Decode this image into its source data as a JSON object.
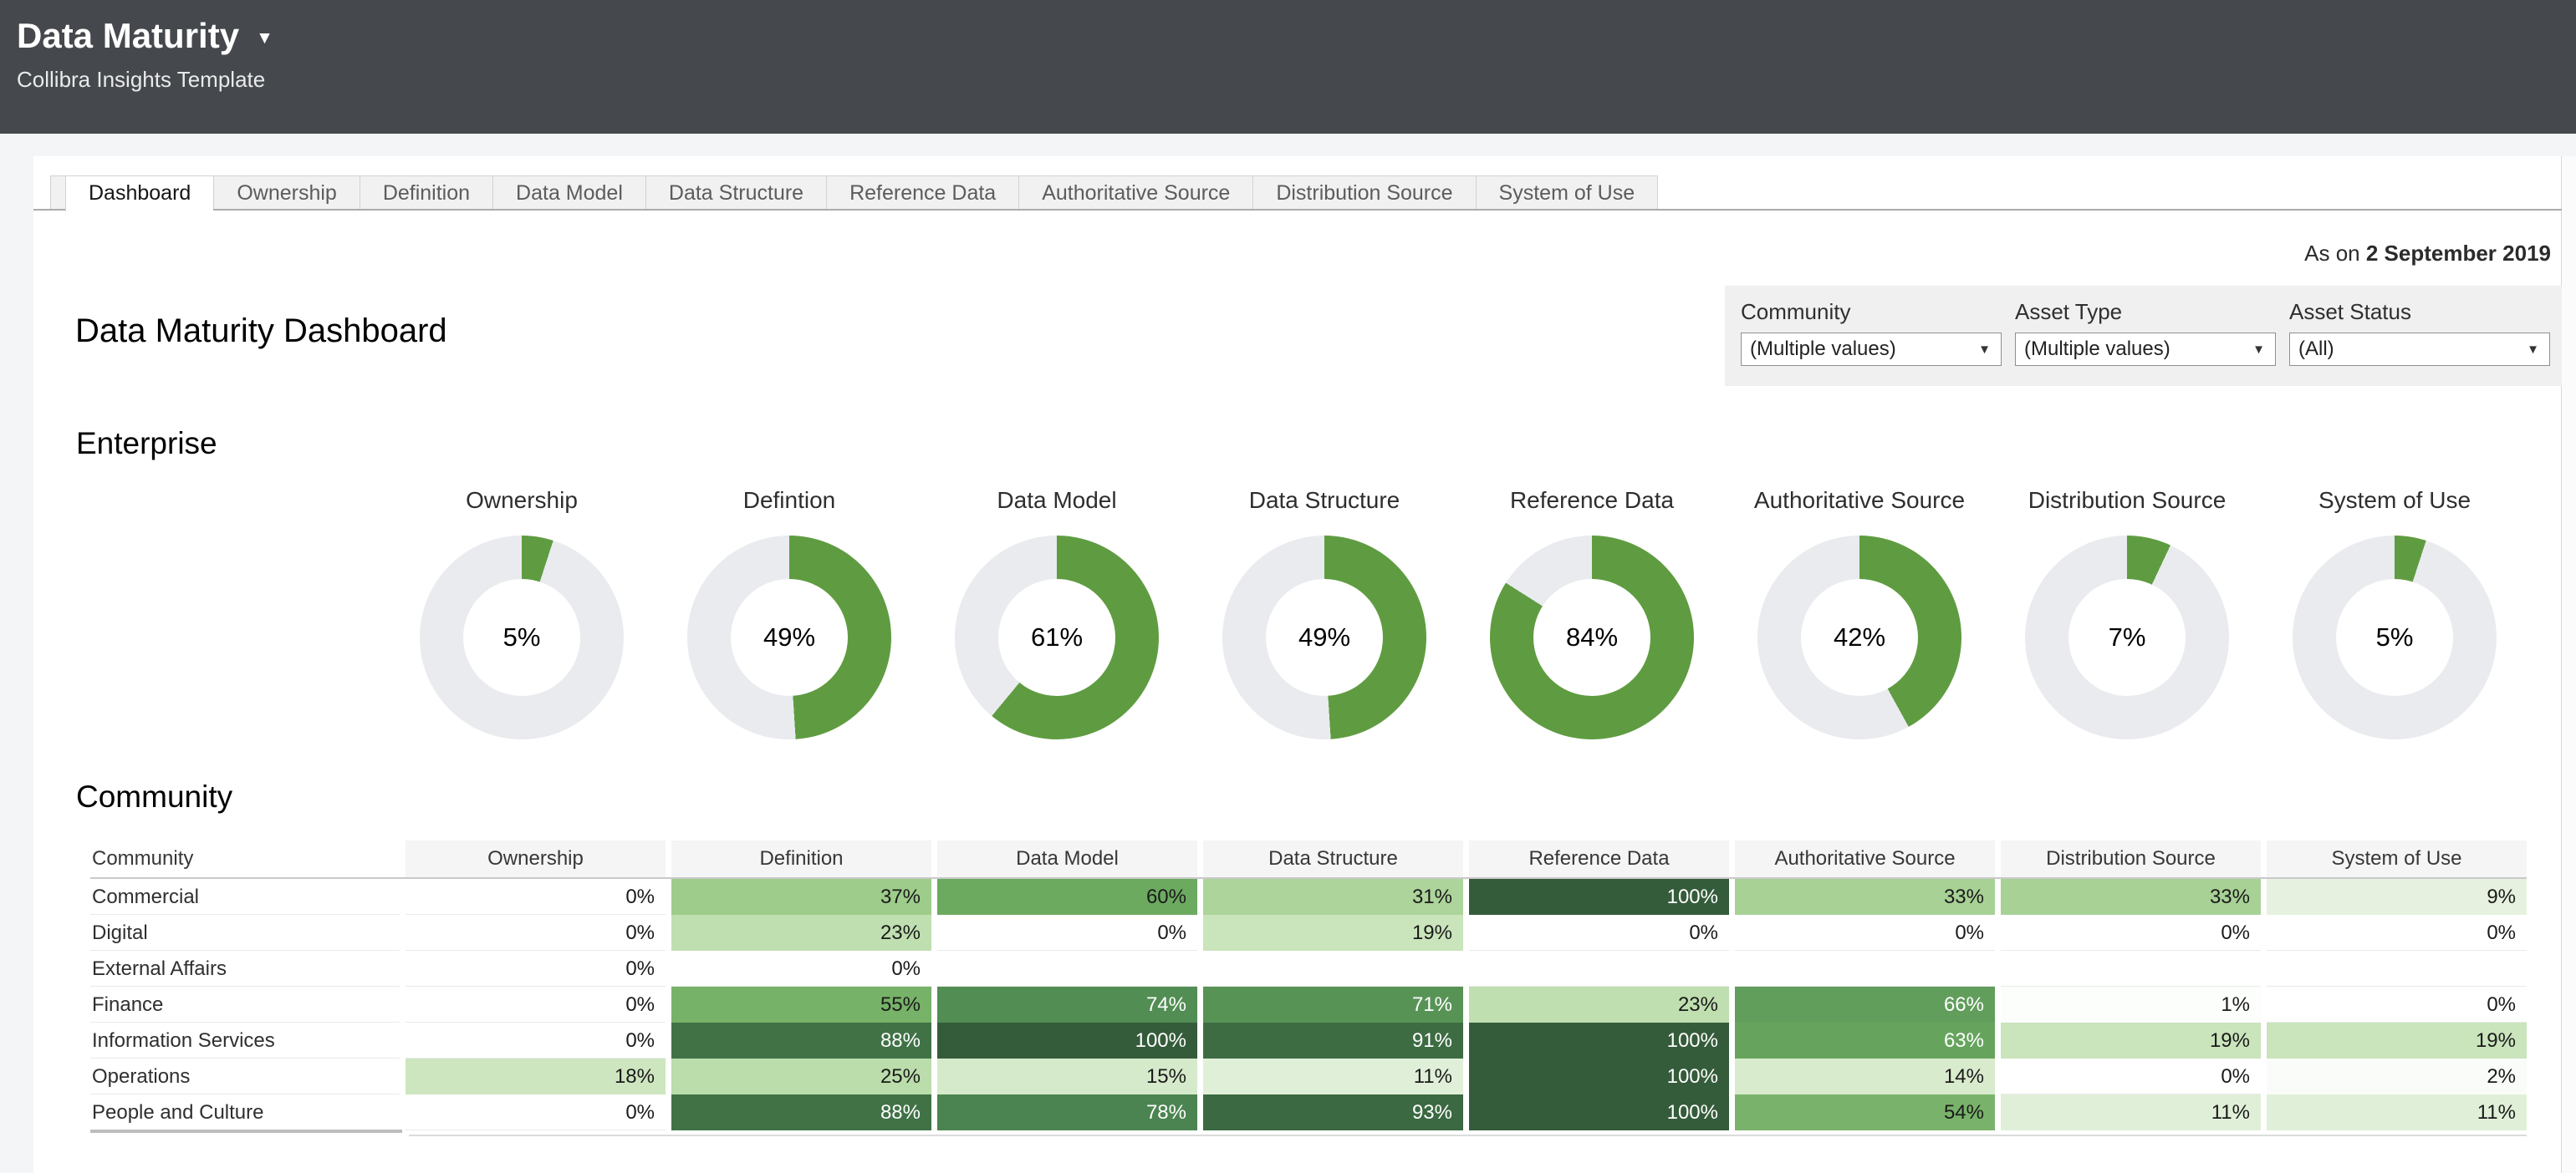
{
  "header": {
    "title": "Data Maturity",
    "subtitle": "Collibra Insights Template",
    "caret_icon": "▼"
  },
  "tabs": {
    "items": [
      {
        "label": "Dashboard",
        "active": true
      },
      {
        "label": "Ownership",
        "active": false
      },
      {
        "label": "Definition",
        "active": false
      },
      {
        "label": "Data Model",
        "active": false
      },
      {
        "label": "Data Structure",
        "active": false
      },
      {
        "label": "Reference Data",
        "active": false
      },
      {
        "label": "Authoritative Source",
        "active": false
      },
      {
        "label": "Distribution Source",
        "active": false
      },
      {
        "label": "System of Use",
        "active": false
      }
    ]
  },
  "date_line": {
    "prefix": "As on",
    "date": "2 September 2019"
  },
  "filters": {
    "items": [
      {
        "label": "Community",
        "value": "(Multiple values)",
        "caret_icon": "▼"
      },
      {
        "label": "Asset Type",
        "value": "(Multiple values)",
        "caret_icon": "▼"
      },
      {
        "label": "Asset Status",
        "value": "(All)",
        "caret_icon": "▼"
      }
    ]
  },
  "page_title": "Data Maturity Dashboard",
  "sections": {
    "enterprise": "Enterprise",
    "community": "Community"
  },
  "colors": {
    "header_bg": "#45484c",
    "donut_green": "#5f9c41",
    "donut_track": "#e9ebee",
    "ramp": [
      [
        0,
        "#ffffff"
      ],
      [
        20,
        "#c7e3b8"
      ],
      [
        40,
        "#97c883"
      ],
      [
        60,
        "#6caa60"
      ],
      [
        80,
        "#47804e"
      ],
      [
        100,
        "#355c3a"
      ]
    ],
    "white_text_threshold": 63
  },
  "chart_data": [
    {
      "type": "pie",
      "subtype": "donut-row",
      "title": "Enterprise",
      "unit": "%",
      "categories": [
        "Ownership",
        "Defintion",
        "Data Model",
        "Data Structure",
        "Reference Data",
        "Authoritative Source",
        "Distribution Source",
        "System of Use"
      ],
      "values": [
        5,
        49,
        61,
        49,
        84,
        42,
        7,
        5
      ],
      "ring_color": "#5f9c41",
      "track_color": "#e9ebee",
      "legend": "none"
    },
    {
      "type": "heatmap",
      "title": "Community",
      "row_dimension": "Community",
      "unit": "%",
      "columns": [
        "Ownership",
        "Definition",
        "Data Model",
        "Data Structure",
        "Reference Data",
        "Authoritative Source",
        "Distribution Source",
        "System of Use"
      ],
      "rows": [
        {
          "name": "Commercial",
          "values": [
            0,
            37,
            60,
            31,
            100,
            33,
            33,
            9
          ]
        },
        {
          "name": "Digital",
          "values": [
            0,
            23,
            0,
            19,
            0,
            0,
            0,
            0
          ]
        },
        {
          "name": "External Affairs",
          "values": [
            0,
            0,
            null,
            null,
            null,
            null,
            null,
            null
          ]
        },
        {
          "name": "Finance",
          "values": [
            0,
            55,
            74,
            71,
            23,
            66,
            1,
            0
          ]
        },
        {
          "name": "Information Services",
          "values": [
            0,
            88,
            100,
            91,
            100,
            63,
            19,
            19
          ]
        },
        {
          "name": "Operations",
          "values": [
            18,
            25,
            15,
            11,
            100,
            14,
            0,
            2
          ]
        },
        {
          "name": "People and Culture",
          "values": [
            0,
            88,
            78,
            93,
            100,
            54,
            11,
            11
          ]
        }
      ],
      "palette": "white-to-dark-green sequential",
      "value_range": [
        0,
        100
      ]
    }
  ]
}
